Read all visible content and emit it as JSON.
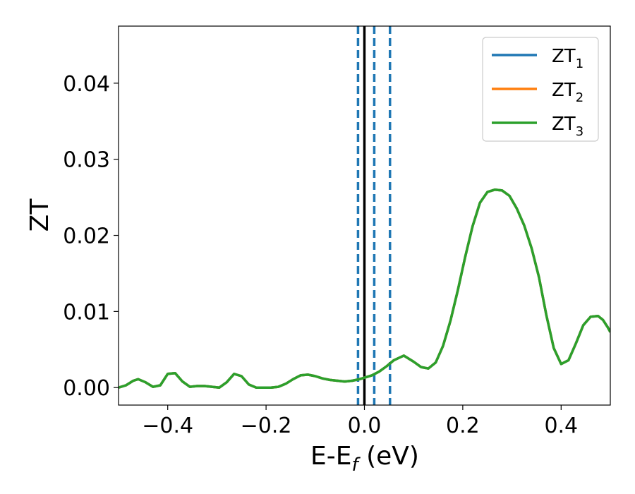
{
  "chart_data": {
    "type": "line",
    "title": "",
    "xlabel": "E-E",
    "xlabel_sub": "f",
    "xlabel_unit": " (eV)",
    "ylabel": "ZT",
    "xlim": [
      -0.5,
      0.5
    ],
    "ylim": [
      -0.0023,
      0.0475
    ],
    "x_ticks": [
      -0.4,
      -0.2,
      0.0,
      0.2,
      0.4
    ],
    "x_tick_labels": [
      "−0.4",
      "−0.2",
      "0.0",
      "0.2",
      "0.4"
    ],
    "y_ticks": [
      0.0,
      0.01,
      0.02,
      0.03,
      0.04
    ],
    "y_tick_labels": [
      "0.00",
      "0.01",
      "0.02",
      "0.03",
      "0.04"
    ],
    "grid": false,
    "legend_position": "top-right",
    "vlines": [
      {
        "x": 0.0,
        "style": "solid",
        "color": "#000000"
      },
      {
        "x": -0.013,
        "style": "dashed",
        "color": "#1f77b4"
      },
      {
        "x": 0.02,
        "style": "dashed",
        "color": "#1f77b4"
      },
      {
        "x": 0.052,
        "style": "dashed",
        "color": "#1f77b4"
      }
    ],
    "series": [
      {
        "name": "ZT",
        "name_sub": "1",
        "color": "#1f77b4"
      },
      {
        "name": "ZT",
        "name_sub": "2",
        "color": "#ff7f0e"
      },
      {
        "name": "ZT",
        "name_sub": "3",
        "color": "#2ca02c"
      }
    ],
    "x": [
      -0.5,
      -0.485,
      -0.47,
      -0.46,
      -0.445,
      -0.43,
      -0.415,
      -0.4,
      -0.385,
      -0.37,
      -0.355,
      -0.34,
      -0.325,
      -0.31,
      -0.295,
      -0.28,
      -0.265,
      -0.25,
      -0.235,
      -0.22,
      -0.205,
      -0.19,
      -0.175,
      -0.16,
      -0.145,
      -0.13,
      -0.115,
      -0.1,
      -0.085,
      -0.07,
      -0.055,
      -0.04,
      -0.025,
      -0.01,
      0.0,
      0.015,
      0.03,
      0.045,
      0.06,
      0.08,
      0.1,
      0.115,
      0.13,
      0.145,
      0.16,
      0.175,
      0.19,
      0.205,
      0.22,
      0.235,
      0.25,
      0.265,
      0.28,
      0.295,
      0.31,
      0.325,
      0.34,
      0.355,
      0.37,
      0.385,
      0.4,
      0.415,
      0.43,
      0.445,
      0.46,
      0.475,
      0.485,
      0.495,
      0.5
    ],
    "y": [
      0.0,
      0.0003,
      0.0009,
      0.0011,
      0.0007,
      0.0001,
      0.0003,
      0.0018,
      0.0019,
      0.0008,
      0.0001,
      0.0002,
      0.0002,
      0.0001,
      0.0,
      0.0007,
      0.0018,
      0.0015,
      0.0004,
      0.0,
      0.0,
      0.0,
      0.0001,
      0.0005,
      0.0011,
      0.0016,
      0.0017,
      0.0015,
      0.0012,
      0.001,
      0.0009,
      0.0008,
      0.0009,
      0.0011,
      0.0013,
      0.0016,
      0.0021,
      0.0028,
      0.0036,
      0.0042,
      0.0034,
      0.0027,
      0.0025,
      0.0033,
      0.0055,
      0.0088,
      0.0128,
      0.0172,
      0.0212,
      0.0243,
      0.0257,
      0.026,
      0.0259,
      0.0252,
      0.0235,
      0.0213,
      0.0183,
      0.0145,
      0.0095,
      0.0052,
      0.0031,
      0.0036,
      0.0058,
      0.0082,
      0.0093,
      0.0094,
      0.0089,
      0.0079,
      0.0073
    ]
  }
}
